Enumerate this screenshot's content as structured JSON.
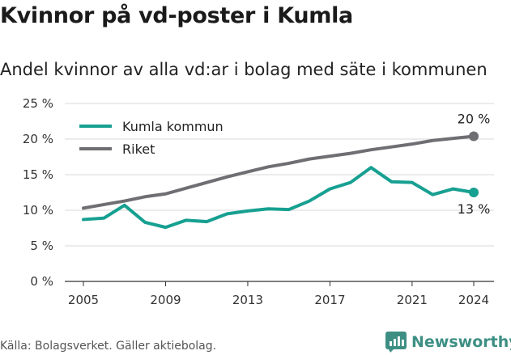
{
  "header": {
    "title": "Kvinnor på vd-poster i Kumla",
    "subtitle": "Andel kvinnor av alla vd:ar i bolag med säte i kommunen"
  },
  "footer": {
    "source": "Källa: Bolagsverket. Gäller aktiebolag.",
    "brand": "Newsworthy",
    "brand_icon": "bar-chart-logo-icon",
    "brand_color": "#3d8f84"
  },
  "chart_data": {
    "type": "line",
    "x": [
      2005,
      2006,
      2007,
      2008,
      2009,
      2010,
      2011,
      2012,
      2013,
      2014,
      2015,
      2016,
      2017,
      2018,
      2019,
      2020,
      2021,
      2022,
      2023,
      2024
    ],
    "series": [
      {
        "name": "Kumla kommun",
        "color": "#17a091",
        "values": [
          8.7,
          8.9,
          10.7,
          8.3,
          7.6,
          8.6,
          8.4,
          9.5,
          9.9,
          10.2,
          10.1,
          11.3,
          13.0,
          13.9,
          16.0,
          14.0,
          13.9,
          12.2,
          13.0,
          12.5
        ],
        "end_label": "13 %"
      },
      {
        "name": "Riket",
        "color": "#6e6e73",
        "values": [
          10.3,
          10.8,
          11.3,
          11.9,
          12.3,
          13.1,
          13.9,
          14.7,
          15.4,
          16.1,
          16.6,
          17.2,
          17.6,
          18.0,
          18.5,
          18.9,
          19.3,
          19.8,
          20.1,
          20.4
        ],
        "end_label": "20 %"
      }
    ],
    "xticks": [
      2005,
      2009,
      2013,
      2017,
      2021,
      2024
    ],
    "xtick_labels": [
      "2005",
      "2009",
      "2013",
      "2017",
      "2021",
      "2024"
    ],
    "yticks": [
      0,
      5,
      10,
      15,
      20,
      25
    ],
    "ytick_labels": [
      "0 %",
      "5 %",
      "10 %",
      "15 %",
      "20 %",
      "25 %"
    ],
    "ylim": [
      0,
      25
    ],
    "xlim": [
      2005,
      2024
    ],
    "grid": true,
    "legend": "top-left"
  }
}
